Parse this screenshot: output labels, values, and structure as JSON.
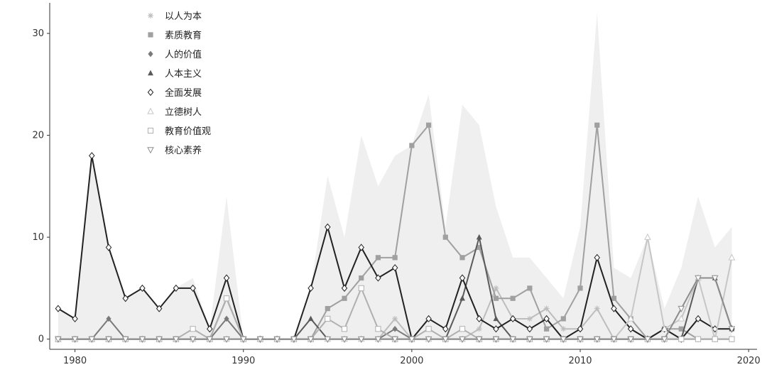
{
  "chart_data": {
    "type": "line",
    "title": "",
    "xlabel": "",
    "ylabel": "",
    "xlim": [
      1978.5,
      2020.5
    ],
    "ylim": [
      -1,
      33
    ],
    "x_ticks": [
      1980,
      1990,
      2000,
      2010,
      2020
    ],
    "x_tick_labels": [
      "1980",
      "1990",
      "2000",
      "2010",
      "2020"
    ],
    "y_ticks": [
      0,
      10,
      20,
      30
    ],
    "y_tick_labels": [
      "0",
      "10",
      "20",
      "30"
    ],
    "grid": false,
    "legend_position": "top-left",
    "background_area": {
      "name": "total",
      "color": "#efefef",
      "x": [
        1979,
        1980,
        1981,
        1982,
        1983,
        1984,
        1985,
        1986,
        1987,
        1988,
        1989,
        1990,
        1991,
        1992,
        1993,
        1994,
        1995,
        1996,
        1997,
        1998,
        1999,
        2000,
        2001,
        2002,
        2003,
        2004,
        2005,
        2006,
        2007,
        2008,
        2009,
        2010,
        2011,
        2012,
        2013,
        2014,
        2015,
        2016,
        2017,
        2018,
        2019
      ],
      "values": [
        3,
        2,
        18,
        9,
        4,
        5,
        3,
        5,
        6,
        1,
        14,
        0,
        0,
        0,
        0,
        5,
        16,
        10,
        20,
        15,
        18,
        19,
        24,
        11,
        23,
        21,
        13,
        8,
        8,
        6,
        4,
        11,
        32,
        7,
        6,
        10,
        3,
        7,
        14,
        9,
        11
      ]
    },
    "series": [
      {
        "name": "以人为本",
        "marker": "asterisk",
        "color": "#bdbdbd",
        "x": [
          1979,
          1980,
          1981,
          1982,
          1983,
          1984,
          1985,
          1986,
          1987,
          1988,
          1989,
          1990,
          1991,
          1992,
          1993,
          1994,
          1995,
          1996,
          1997,
          1998,
          1999,
          2000,
          2001,
          2002,
          2003,
          2004,
          2005,
          2006,
          2007,
          2008,
          2009,
          2010,
          2011,
          2012,
          2013,
          2014,
          2015,
          2016,
          2017,
          2018,
          2019
        ],
        "values": [
          0,
          0,
          0,
          0,
          0,
          0,
          0,
          0,
          0,
          0,
          0,
          0,
          0,
          0,
          0,
          0,
          0,
          0,
          0,
          0,
          2,
          0,
          0,
          0,
          0,
          1,
          5,
          2,
          2,
          3,
          1,
          1,
          3,
          0,
          0,
          0,
          0,
          0,
          0,
          0,
          0
        ]
      },
      {
        "name": "素质教育",
        "marker": "square-filled",
        "color": "#a0a0a0",
        "x": [
          1979,
          1980,
          1981,
          1982,
          1983,
          1984,
          1985,
          1986,
          1987,
          1988,
          1989,
          1990,
          1991,
          1992,
          1993,
          1994,
          1995,
          1996,
          1997,
          1998,
          1999,
          2000,
          2001,
          2002,
          2003,
          2004,
          2005,
          2006,
          2007,
          2008,
          2009,
          2010,
          2011,
          2012,
          2013,
          2014,
          2015,
          2016,
          2017,
          2018,
          2019
        ],
        "values": [
          0,
          0,
          0,
          0,
          0,
          0,
          0,
          0,
          0,
          0,
          0,
          0,
          0,
          0,
          0,
          0,
          3,
          4,
          6,
          8,
          8,
          19,
          21,
          10,
          8,
          9,
          4,
          4,
          5,
          1,
          2,
          5,
          21,
          4,
          2,
          0,
          1,
          1,
          0,
          0,
          0
        ]
      },
      {
        "name": "人的价值",
        "marker": "diamond-filled",
        "color": "#7a7a7a",
        "x": [
          1979,
          1980,
          1981,
          1982,
          1983,
          1984,
          1985,
          1986,
          1987,
          1988,
          1989,
          1990,
          1991,
          1992,
          1993,
          1994,
          1995,
          1996,
          1997,
          1998,
          1999,
          2000,
          2001,
          2002,
          2003,
          2004,
          2005,
          2006,
          2007,
          2008,
          2009,
          2010,
          2011,
          2012,
          2013,
          2014,
          2015,
          2016,
          2017,
          2018,
          2019
        ],
        "values": [
          0,
          0,
          0,
          2,
          0,
          0,
          0,
          0,
          0,
          0,
          2,
          0,
          0,
          0,
          0,
          0,
          0,
          0,
          0,
          0,
          1,
          0,
          0,
          0,
          0,
          0,
          0,
          0,
          0,
          0,
          0,
          0,
          0,
          0,
          0,
          0,
          0,
          0,
          0,
          0,
          0
        ]
      },
      {
        "name": "人本主义",
        "marker": "triangle-up-filled",
        "color": "#5a5a5a",
        "x": [
          1979,
          1980,
          1981,
          1982,
          1983,
          1984,
          1985,
          1986,
          1987,
          1988,
          1989,
          1990,
          1991,
          1992,
          1993,
          1994,
          1995,
          1996,
          1997,
          1998,
          1999,
          2000,
          2001,
          2002,
          2003,
          2004,
          2005,
          2006,
          2007,
          2008,
          2009,
          2010,
          2011,
          2012,
          2013,
          2014,
          2015,
          2016,
          2017,
          2018,
          2019
        ],
        "values": [
          0,
          0,
          0,
          0,
          0,
          0,
          0,
          0,
          0,
          0,
          4,
          0,
          0,
          0,
          0,
          2,
          0,
          0,
          0,
          0,
          0,
          0,
          0,
          0,
          4,
          10,
          2,
          0,
          0,
          0,
          0,
          0,
          0,
          0,
          0,
          0,
          0,
          0,
          6,
          6,
          1
        ]
      },
      {
        "name": "全面发展",
        "marker": "diamond-open",
        "color": "#222222",
        "x": [
          1979,
          1980,
          1981,
          1982,
          1983,
          1984,
          1985,
          1986,
          1987,
          1988,
          1989,
          1990,
          1991,
          1992,
          1993,
          1994,
          1995,
          1996,
          1997,
          1998,
          1999,
          2000,
          2001,
          2002,
          2003,
          2004,
          2005,
          2006,
          2007,
          2008,
          2009,
          2010,
          2011,
          2012,
          2013,
          2014,
          2015,
          2016,
          2017,
          2018,
          2019
        ],
        "values": [
          3,
          2,
          18,
          9,
          4,
          5,
          3,
          5,
          5,
          1,
          6,
          0,
          0,
          0,
          0,
          5,
          11,
          5,
          9,
          6,
          7,
          0,
          2,
          1,
          6,
          2,
          1,
          2,
          1,
          2,
          0,
          1,
          8,
          3,
          1,
          0,
          1,
          0,
          2,
          1,
          1
        ]
      },
      {
        "name": "立德树人",
        "marker": "triangle-up-open",
        "color": "#c6c6c6",
        "x": [
          1979,
          1980,
          1981,
          1982,
          1983,
          1984,
          1985,
          1986,
          1987,
          1988,
          1989,
          1990,
          1991,
          1992,
          1993,
          1994,
          1995,
          1996,
          1997,
          1998,
          1999,
          2000,
          2001,
          2002,
          2003,
          2004,
          2005,
          2006,
          2007,
          2008,
          2009,
          2010,
          2011,
          2012,
          2013,
          2014,
          2015,
          2016,
          2017,
          2018,
          2019
        ],
        "values": [
          0,
          0,
          0,
          0,
          0,
          0,
          0,
          0,
          0,
          0,
          0,
          0,
          0,
          0,
          0,
          0,
          0,
          0,
          0,
          0,
          0,
          0,
          0,
          0,
          0,
          0,
          0,
          0,
          0,
          0,
          0,
          0,
          0,
          0,
          2,
          10,
          1,
          2,
          6,
          0,
          8
        ]
      },
      {
        "name": "教育价值观",
        "marker": "square-open",
        "color": "#b0b0b0",
        "x": [
          1979,
          1980,
          1981,
          1982,
          1983,
          1984,
          1985,
          1986,
          1987,
          1988,
          1989,
          1990,
          1991,
          1992,
          1993,
          1994,
          1995,
          1996,
          1997,
          1998,
          1999,
          2000,
          2001,
          2002,
          2003,
          2004,
          2005,
          2006,
          2007,
          2008,
          2009,
          2010,
          2011,
          2012,
          2013,
          2014,
          2015,
          2016,
          2017,
          2018,
          2019
        ],
        "values": [
          0,
          0,
          0,
          0,
          0,
          0,
          0,
          0,
          1,
          0,
          4,
          0,
          0,
          0,
          0,
          0,
          2,
          1,
          5,
          1,
          0,
          0,
          1,
          0,
          1,
          0,
          0,
          0,
          0,
          0,
          0,
          0,
          0,
          0,
          0,
          0,
          0,
          0,
          0,
          0,
          0
        ]
      },
      {
        "name": "核心素养",
        "marker": "triangle-down-open",
        "color": "#8c8c8c",
        "x": [
          1979,
          1980,
          1981,
          1982,
          1983,
          1984,
          1985,
          1986,
          1987,
          1988,
          1989,
          1990,
          1991,
          1992,
          1993,
          1994,
          1995,
          1996,
          1997,
          1998,
          1999,
          2000,
          2001,
          2002,
          2003,
          2004,
          2005,
          2006,
          2007,
          2008,
          2009,
          2010,
          2011,
          2012,
          2013,
          2014,
          2015,
          2016,
          2017,
          2018,
          2019
        ],
        "values": [
          0,
          0,
          0,
          0,
          0,
          0,
          0,
          0,
          0,
          0,
          0,
          0,
          0,
          0,
          0,
          0,
          0,
          0,
          0,
          0,
          0,
          0,
          0,
          0,
          0,
          0,
          0,
          0,
          0,
          0,
          0,
          0,
          0,
          0,
          0,
          0,
          0,
          3,
          6,
          6,
          1
        ]
      }
    ]
  }
}
